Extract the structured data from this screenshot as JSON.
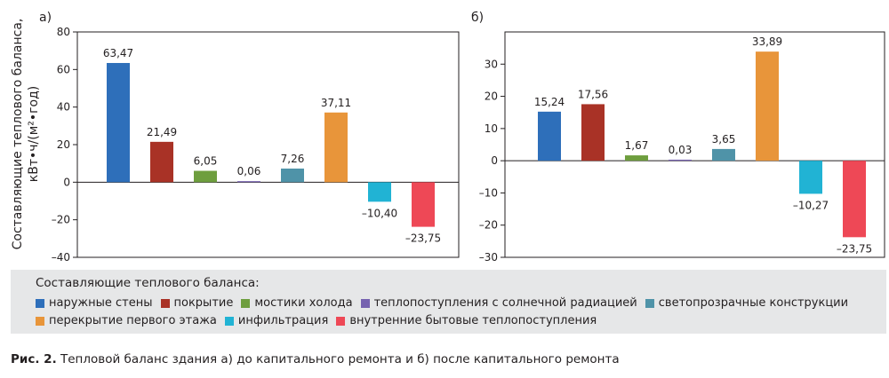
{
  "legend": {
    "title": "Составляющие теплового баланса:",
    "items": [
      {
        "label": "наружные стены",
        "color": "#2e6fba"
      },
      {
        "label": "покрытие",
        "color": "#a93226"
      },
      {
        "label": "мостики холода",
        "color": "#6e9e3e"
      },
      {
        "label": "теплопоступления с солнечной радиацией",
        "color": "#7662b0"
      },
      {
        "label": "светопрозрачные конструкции",
        "color": "#4f93a8"
      },
      {
        "label": "перекрытие первого этажа",
        "color": "#e8953a"
      },
      {
        "label": "инфильтрация",
        "color": "#21b3d4"
      },
      {
        "label": "внутренние бытовые теплопоступления",
        "color": "#ee4856"
      }
    ]
  },
  "caption": {
    "fig": "Рис. 2.",
    "text": " Тепловой баланс здания а) до капитального ремонта и б) после капитального ремонта"
  },
  "chart_data": [
    {
      "type": "bar",
      "panel_label": "а)",
      "ylabel": "Составляющие теплового баланса, кВт•ч/(м²•год)",
      "ylim": [
        -40,
        80
      ],
      "yticks": [
        -40,
        -20,
        0,
        20,
        40,
        60,
        80
      ],
      "ytick_labels": [
        "–40",
        "–20",
        "0",
        "20",
        "40",
        "60",
        "80"
      ],
      "values": [
        63.47,
        21.49,
        6.05,
        0.06,
        7.26,
        37.11,
        -10.4,
        -23.75
      ],
      "value_labels": [
        "63,47",
        "21,49",
        "6,05",
        "0,06",
        "7,26",
        "37,11",
        "–10,40",
        "–23,75"
      ],
      "grid": false
    },
    {
      "type": "bar",
      "panel_label": "б)",
      "ylim": [
        -30,
        40
      ],
      "yticks": [
        -30,
        -20,
        -10,
        0,
        10,
        20,
        30
      ],
      "ytick_labels": [
        "–30",
        "–20",
        "–10",
        "0",
        "10",
        "20",
        "30"
      ],
      "values": [
        15.24,
        17.56,
        1.67,
        0.03,
        3.65,
        33.89,
        -10.27,
        -23.75
      ],
      "value_labels": [
        "15,24",
        "17,56",
        "1,67",
        "0,03",
        "3,65",
        "33,89",
        "–10,27",
        "–23,75"
      ],
      "grid": false
    }
  ]
}
